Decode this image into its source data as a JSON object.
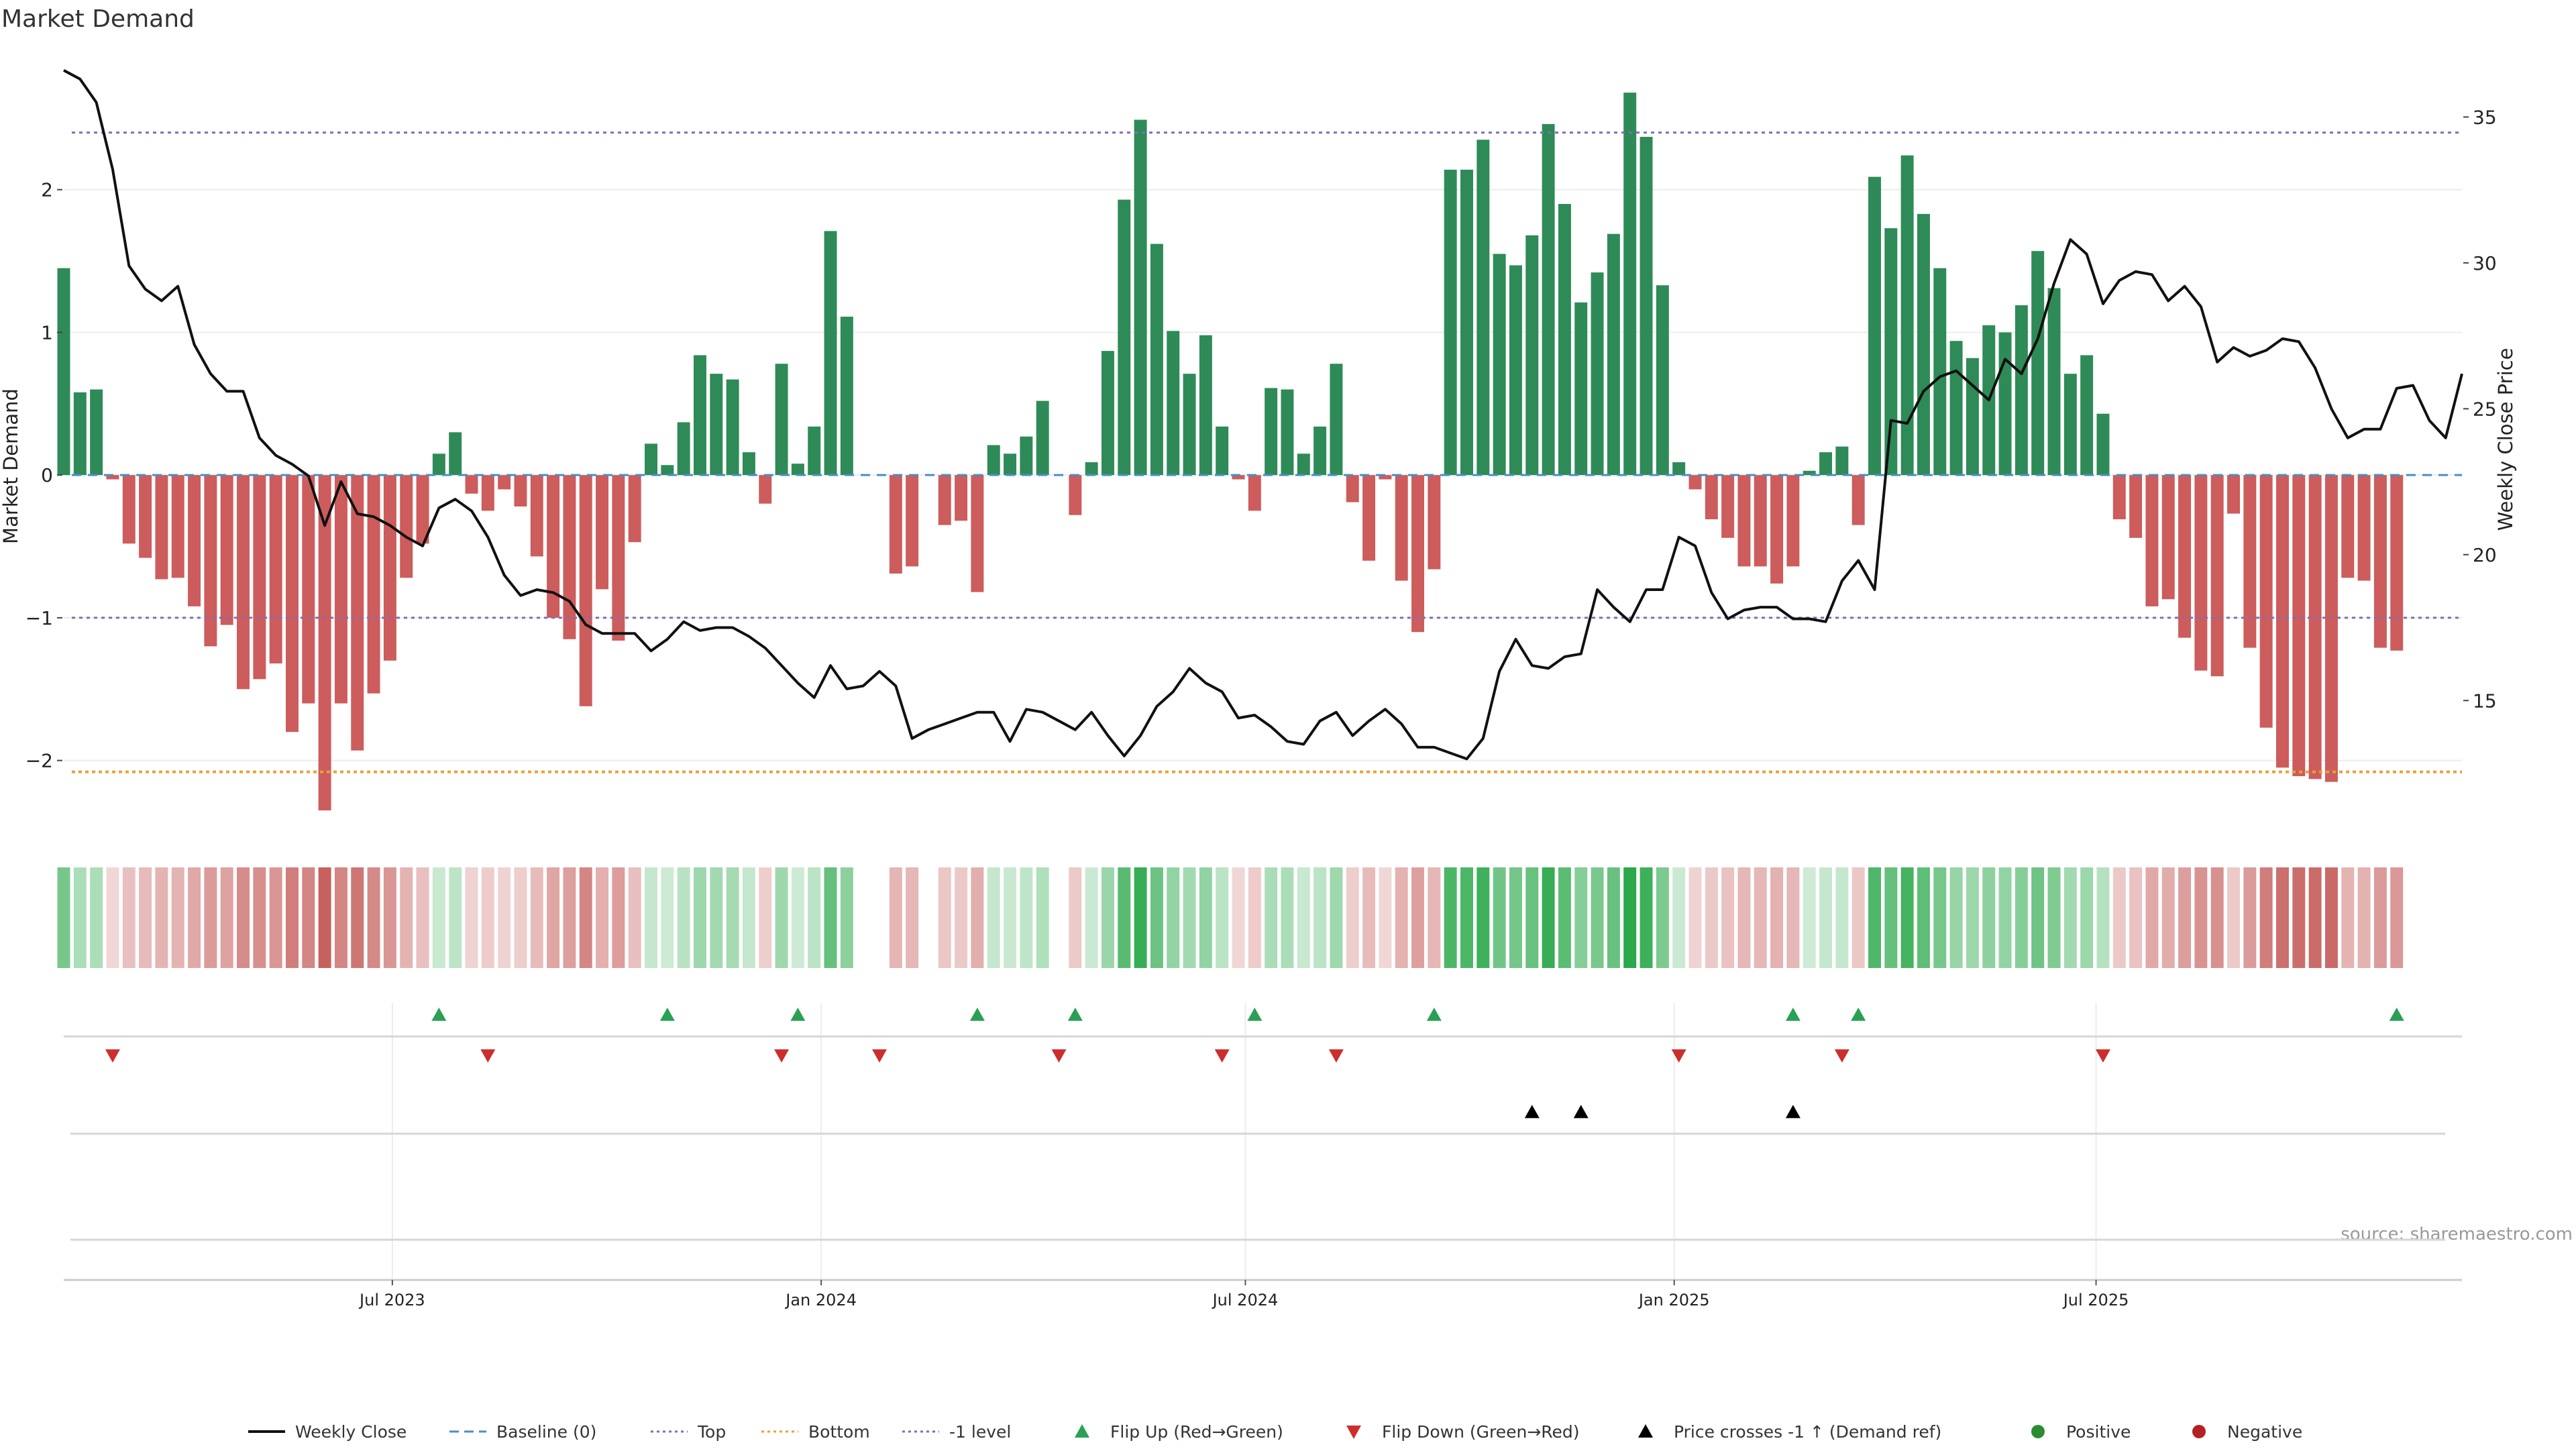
{
  "chart_data": {
    "type": "bar",
    "title": "Market Demand",
    "ylabel": "Market Demand",
    "y2label": "Weekly Close Price",
    "ylim": [
      -2.5,
      3.0
    ],
    "y2lim": [
      10.5,
      37.4
    ],
    "yticks": [
      -2,
      -1,
      0,
      1,
      2
    ],
    "y2ticks": [
      15,
      20,
      25,
      30,
      35
    ],
    "x_range": [
      "2023-02-10",
      "2025-12-05"
    ],
    "xticks": [
      {
        "date": "2023-07-01",
        "label": "Jul 2023"
      },
      {
        "date": "2024-01-01",
        "label": "Jan 2024"
      },
      {
        "date": "2024-07-01",
        "label": "Jul 2024"
      },
      {
        "date": "2025-01-01",
        "label": "Jan 2025"
      },
      {
        "date": "2025-07-01",
        "label": "Jul 2025"
      }
    ],
    "start_date": "2023-02-10",
    "reference_lines": {
      "top": 2.4,
      "bottom": -2.08,
      "minus_one": -1.0,
      "baseline": 0
    },
    "series": [
      {
        "name": "Weekly Close",
        "type": "line",
        "values": [
          36.6,
          36.3,
          35.5,
          33.2,
          29.9,
          29.1,
          28.7,
          29.2,
          27.2,
          26.2,
          25.6,
          25.6,
          24.0,
          23.4,
          23.1,
          22.7,
          21.0,
          22.5,
          21.4,
          21.3,
          21.0,
          20.6,
          20.3,
          21.6,
          21.9,
          21.5,
          20.6,
          19.3,
          18.6,
          18.8,
          18.7,
          18.4,
          17.6,
          17.3,
          17.3,
          17.3,
          16.7,
          17.1,
          17.7,
          17.4,
          17.5,
          17.5,
          17.2,
          16.8,
          16.2,
          15.6,
          15.1,
          16.2,
          15.4,
          15.5,
          16.0,
          15.5,
          13.7,
          14.0,
          14.2,
          14.4,
          14.6,
          14.6,
          13.6,
          14.7,
          14.6,
          14.3,
          14.0,
          14.6,
          13.8,
          13.1,
          13.8,
          14.8,
          15.3,
          16.1,
          15.6,
          15.3,
          14.4,
          14.5,
          14.1,
          13.6,
          13.5,
          14.3,
          14.6,
          13.8,
          14.3,
          14.7,
          14.2,
          13.4,
          13.4,
          13.2,
          13.0,
          13.7,
          16.0,
          17.1,
          16.2,
          16.1,
          16.5,
          16.6,
          18.8,
          18.2,
          17.7,
          18.8,
          18.8,
          20.6,
          20.3,
          18.7,
          17.8,
          18.1,
          18.2,
          18.2,
          17.8,
          17.8,
          17.7,
          19.1,
          19.8,
          18.8,
          24.6,
          24.5,
          25.6,
          26.1,
          26.3,
          25.8,
          25.3,
          26.7,
          26.2,
          27.4,
          29.3,
          30.8,
          30.3,
          28.6,
          29.4,
          29.7,
          29.6,
          28.7,
          29.2,
          28.5,
          26.6,
          27.1,
          26.8,
          27.0,
          27.4,
          27.3,
          26.4,
          25.0,
          24.0,
          24.3,
          24.3,
          25.7,
          25.8,
          24.6,
          24.0,
          26.2
        ]
      },
      {
        "name": "Market Demand",
        "type": "bar",
        "values": [
          1.45,
          0.58,
          0.6,
          -0.03,
          -0.48,
          -0.58,
          -0.73,
          -0.72,
          -0.92,
          -1.2,
          -1.05,
          -1.5,
          -1.43,
          -1.32,
          -1.8,
          -1.6,
          -2.35,
          -1.6,
          -1.93,
          -1.53,
          -1.3,
          -0.72,
          -0.48,
          0.15,
          0.3,
          -0.13,
          -0.25,
          -0.1,
          -0.22,
          -0.57,
          -1.0,
          -1.15,
          -1.62,
          -0.8,
          -1.16,
          -0.47,
          0.22,
          0.07,
          0.37,
          0.84,
          0.71,
          0.67,
          0.16,
          -0.2,
          0.78,
          0.08,
          0.34,
          1.71,
          1.11,
          0,
          0,
          -0.69,
          -0.64,
          0,
          -0.35,
          -0.32,
          -0.82,
          0.21,
          0.15,
          0.27,
          0.52,
          0,
          -0.28,
          0.09,
          0.87,
          1.93,
          2.49,
          1.62,
          1.01,
          0.71,
          0.98,
          0.34,
          -0.03,
          -0.25,
          0.61,
          0.6,
          0.15,
          0.34,
          0.78,
          -0.19,
          -0.6,
          -0.03,
          -0.74,
          -1.1,
          -0.66,
          2.14,
          2.14,
          2.35,
          1.55,
          1.47,
          1.68,
          2.46,
          1.9,
          1.21,
          1.42,
          1.69,
          2.68,
          2.37,
          1.33,
          0.09,
          -0.1,
          -0.31,
          -0.44,
          -0.64,
          -0.64,
          -0.76,
          -0.64,
          0.03,
          0.16,
          0.2,
          -0.35,
          2.09,
          1.73,
          2.24,
          1.83,
          1.45,
          0.94,
          0.82,
          1.05,
          1.0,
          1.19,
          1.57,
          1.31,
          0.71,
          0.84,
          0.43,
          -0.31,
          -0.44,
          -0.92,
          -0.87,
          -1.14,
          -1.37,
          -1.41,
          -0.27,
          -1.21,
          -1.77,
          -2.05,
          -2.11,
          -2.13,
          -2.15,
          -0.72,
          -0.74,
          -1.21,
          -1.23
        ]
      }
    ],
    "flip_up_indices": [
      23,
      37,
      45,
      56,
      62,
      73,
      84,
      106,
      110,
      143
    ],
    "flip_down_indices": [
      3,
      26,
      44,
      50,
      61,
      71,
      78,
      99,
      109,
      125
    ],
    "price_cross_indices": [
      90,
      93,
      106
    ],
    "legend_position": "bottom",
    "legend": [
      {
        "label": "Weekly Close",
        "symbol": "line-solid",
        "color": "#111111"
      },
      {
        "label": "Baseline (0)",
        "symbol": "line-dashed",
        "color": "#4a8ec9"
      },
      {
        "label": "Top",
        "symbol": "line-dotted",
        "color": "#7e6fb3"
      },
      {
        "label": "Bottom",
        "symbol": "line-dotted",
        "color": "#e8a13a"
      },
      {
        "label": "-1 level",
        "symbol": "line-dotted",
        "color": "#7e6fb3"
      },
      {
        "label": "Flip Up (Red→Green)",
        "symbol": "triangle-up",
        "color": "#2aa055"
      },
      {
        "label": "Flip Down (Green→Red)",
        "symbol": "triangle-down",
        "color": "#cc2d2d"
      },
      {
        "label": "Price crosses -1 ↑ (Demand ref)",
        "symbol": "triangle-up",
        "color": "#000000"
      },
      {
        "label": "Positive",
        "symbol": "circle",
        "color": "#2c8c34"
      },
      {
        "label": "Negative",
        "symbol": "circle",
        "color": "#b22222"
      }
    ],
    "colors": {
      "positive_bar": "#2e8b57",
      "negative_bar": "#cd5c5c",
      "price_line": "#111111",
      "top_line": "#7e6fb3",
      "bottom_line": "#e8a13a",
      "baseline": "#4a8ec9",
      "heat_positive": "#2aa84a",
      "heat_negative": "#c0504d",
      "flip_up": "#2aa055",
      "flip_down": "#cc2d2d",
      "price_cross": "#000000"
    },
    "grid": true,
    "source_note": "source: sharemaestro.com"
  }
}
